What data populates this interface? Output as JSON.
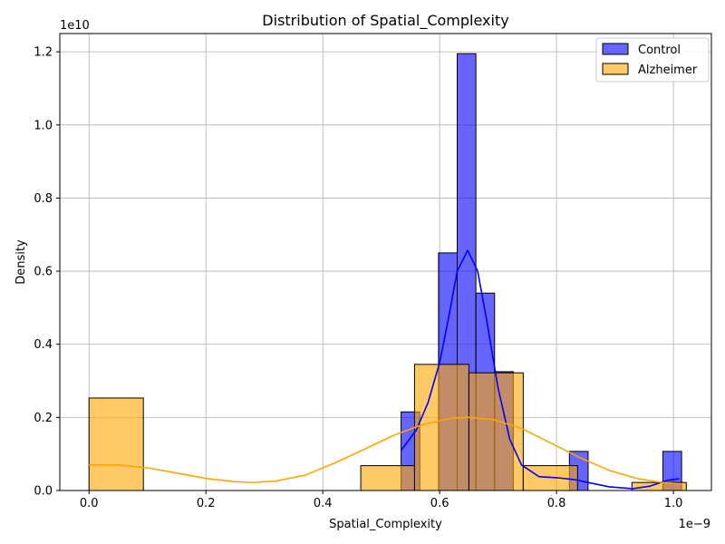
{
  "chart_data": {
    "type": "histogram",
    "title": "Distribution of Spatial_Complexity",
    "xlabel": "Spatial_Complexity",
    "ylabel": "Density",
    "x_offset_label": "1e−9",
    "y_offset_label": "1e10",
    "xlim": [
      -5e-11,
      1.065e-09
    ],
    "ylim": [
      0,
      12500000000.0
    ],
    "x_ticks": [
      0.0,
      2e-10,
      4e-10,
      6e-10,
      8e-10,
      1e-09
    ],
    "x_tick_labels": [
      "0.0",
      "0.2",
      "0.4",
      "0.6",
      "0.8",
      "1.0"
    ],
    "y_ticks": [
      0,
      2000000000.0,
      4000000000.0,
      6000000000.0,
      8000000000.0,
      10000000000.0,
      12000000000.0
    ],
    "y_tick_labels": [
      "0.0",
      "0.2",
      "0.4",
      "0.6",
      "0.8",
      "1.0",
      "1.2"
    ],
    "grid": true,
    "legend_position": "top-right",
    "series": [
      {
        "name": "Control",
        "color": "#0000ff",
        "bins": [
          {
            "x0": 5.34e-10,
            "x1": 5.66e-10,
            "density": 2150000000.0
          },
          {
            "x0": 5.66e-10,
            "x1": 5.98e-10,
            "density": 0.0
          },
          {
            "x0": 5.98e-10,
            "x1": 6.3e-10,
            "density": 6500000000.0
          },
          {
            "x0": 6.3e-10,
            "x1": 6.62e-10,
            "density": 11950000000.0
          },
          {
            "x0": 6.62e-10,
            "x1": 6.94e-10,
            "density": 5400000000.0
          },
          {
            "x0": 6.94e-10,
            "x1": 7.26e-10,
            "density": 3250000000.0
          },
          {
            "x0": 8.22e-10,
            "x1": 8.54e-10,
            "density": 1070000000.0
          },
          {
            "x0": 9.82e-10,
            "x1": 1.014e-09,
            "density": 1070000000.0
          }
        ],
        "kde": [
          [
            5.34e-10,
            1100000000.0
          ],
          [
            5.6e-10,
            1650000000.0
          ],
          [
            5.8e-10,
            2400000000.0
          ],
          [
            6e-10,
            3500000000.0
          ],
          [
            6.15e-10,
            4700000000.0
          ],
          [
            6.3e-10,
            6000000000.0
          ],
          [
            6.48e-10,
            6570000000.0
          ],
          [
            6.65e-10,
            6000000000.0
          ],
          [
            6.8e-10,
            4700000000.0
          ],
          [
            7e-10,
            2800000000.0
          ],
          [
            7.2e-10,
            1400000000.0
          ],
          [
            7.4e-10,
            700000000.0
          ],
          [
            7.7e-10,
            380000000.0
          ],
          [
            8e-10,
            350000000.0
          ],
          [
            8.3e-10,
            300000000.0
          ],
          [
            8.6e-10,
            200000000.0
          ],
          [
            8.9e-10,
            100000000.0
          ],
          [
            9.3e-10,
            50000000.0
          ],
          [
            9.6e-10,
            120000000.0
          ],
          [
            9.9e-10,
            280000000.0
          ],
          [
            1.01e-09,
            320000000.0
          ]
        ]
      },
      {
        "name": "Alzheimer",
        "color": "#ffa500",
        "bins": [
          {
            "x0": 0.0,
            "x1": 9.3e-11,
            "density": 2530000000.0
          },
          {
            "x0": 4.65e-10,
            "x1": 5.57e-10,
            "density": 680000000.0
          },
          {
            "x0": 5.57e-10,
            "x1": 6.5e-10,
            "density": 3450000000.0
          },
          {
            "x0": 6.5e-10,
            "x1": 7.43e-10,
            "density": 3220000000.0
          },
          {
            "x0": 7.43e-10,
            "x1": 8.36e-10,
            "density": 680000000.0
          },
          {
            "x0": 9.29e-10,
            "x1": 1.022e-09,
            "density": 220000000.0
          }
        ],
        "kde": [
          [
            0.0,
            700000000.0
          ],
          [
            5e-11,
            700000000.0
          ],
          [
            1e-10,
            620000000.0
          ],
          [
            1.5e-10,
            480000000.0
          ],
          [
            2e-10,
            330000000.0
          ],
          [
            2.5e-10,
            240000000.0
          ],
          [
            2.8e-10,
            220000000.0
          ],
          [
            3.2e-10,
            260000000.0
          ],
          [
            3.7e-10,
            420000000.0
          ],
          [
            4.2e-10,
            750000000.0
          ],
          [
            4.7e-10,
            1120000000.0
          ],
          [
            5.2e-10,
            1500000000.0
          ],
          [
            5.7e-10,
            1800000000.0
          ],
          [
            6.2e-10,
            1980000000.0
          ],
          [
            6.5e-10,
            2000000000.0
          ],
          [
            6.9e-10,
            1950000000.0
          ],
          [
            7.4e-10,
            1700000000.0
          ],
          [
            7.9e-10,
            1300000000.0
          ],
          [
            8.4e-10,
            900000000.0
          ],
          [
            8.9e-10,
            550000000.0
          ],
          [
            9.4e-10,
            320000000.0
          ],
          [
            9.8e-10,
            220000000.0
          ],
          [
            1.015e-09,
            180000000.0
          ]
        ]
      }
    ]
  }
}
